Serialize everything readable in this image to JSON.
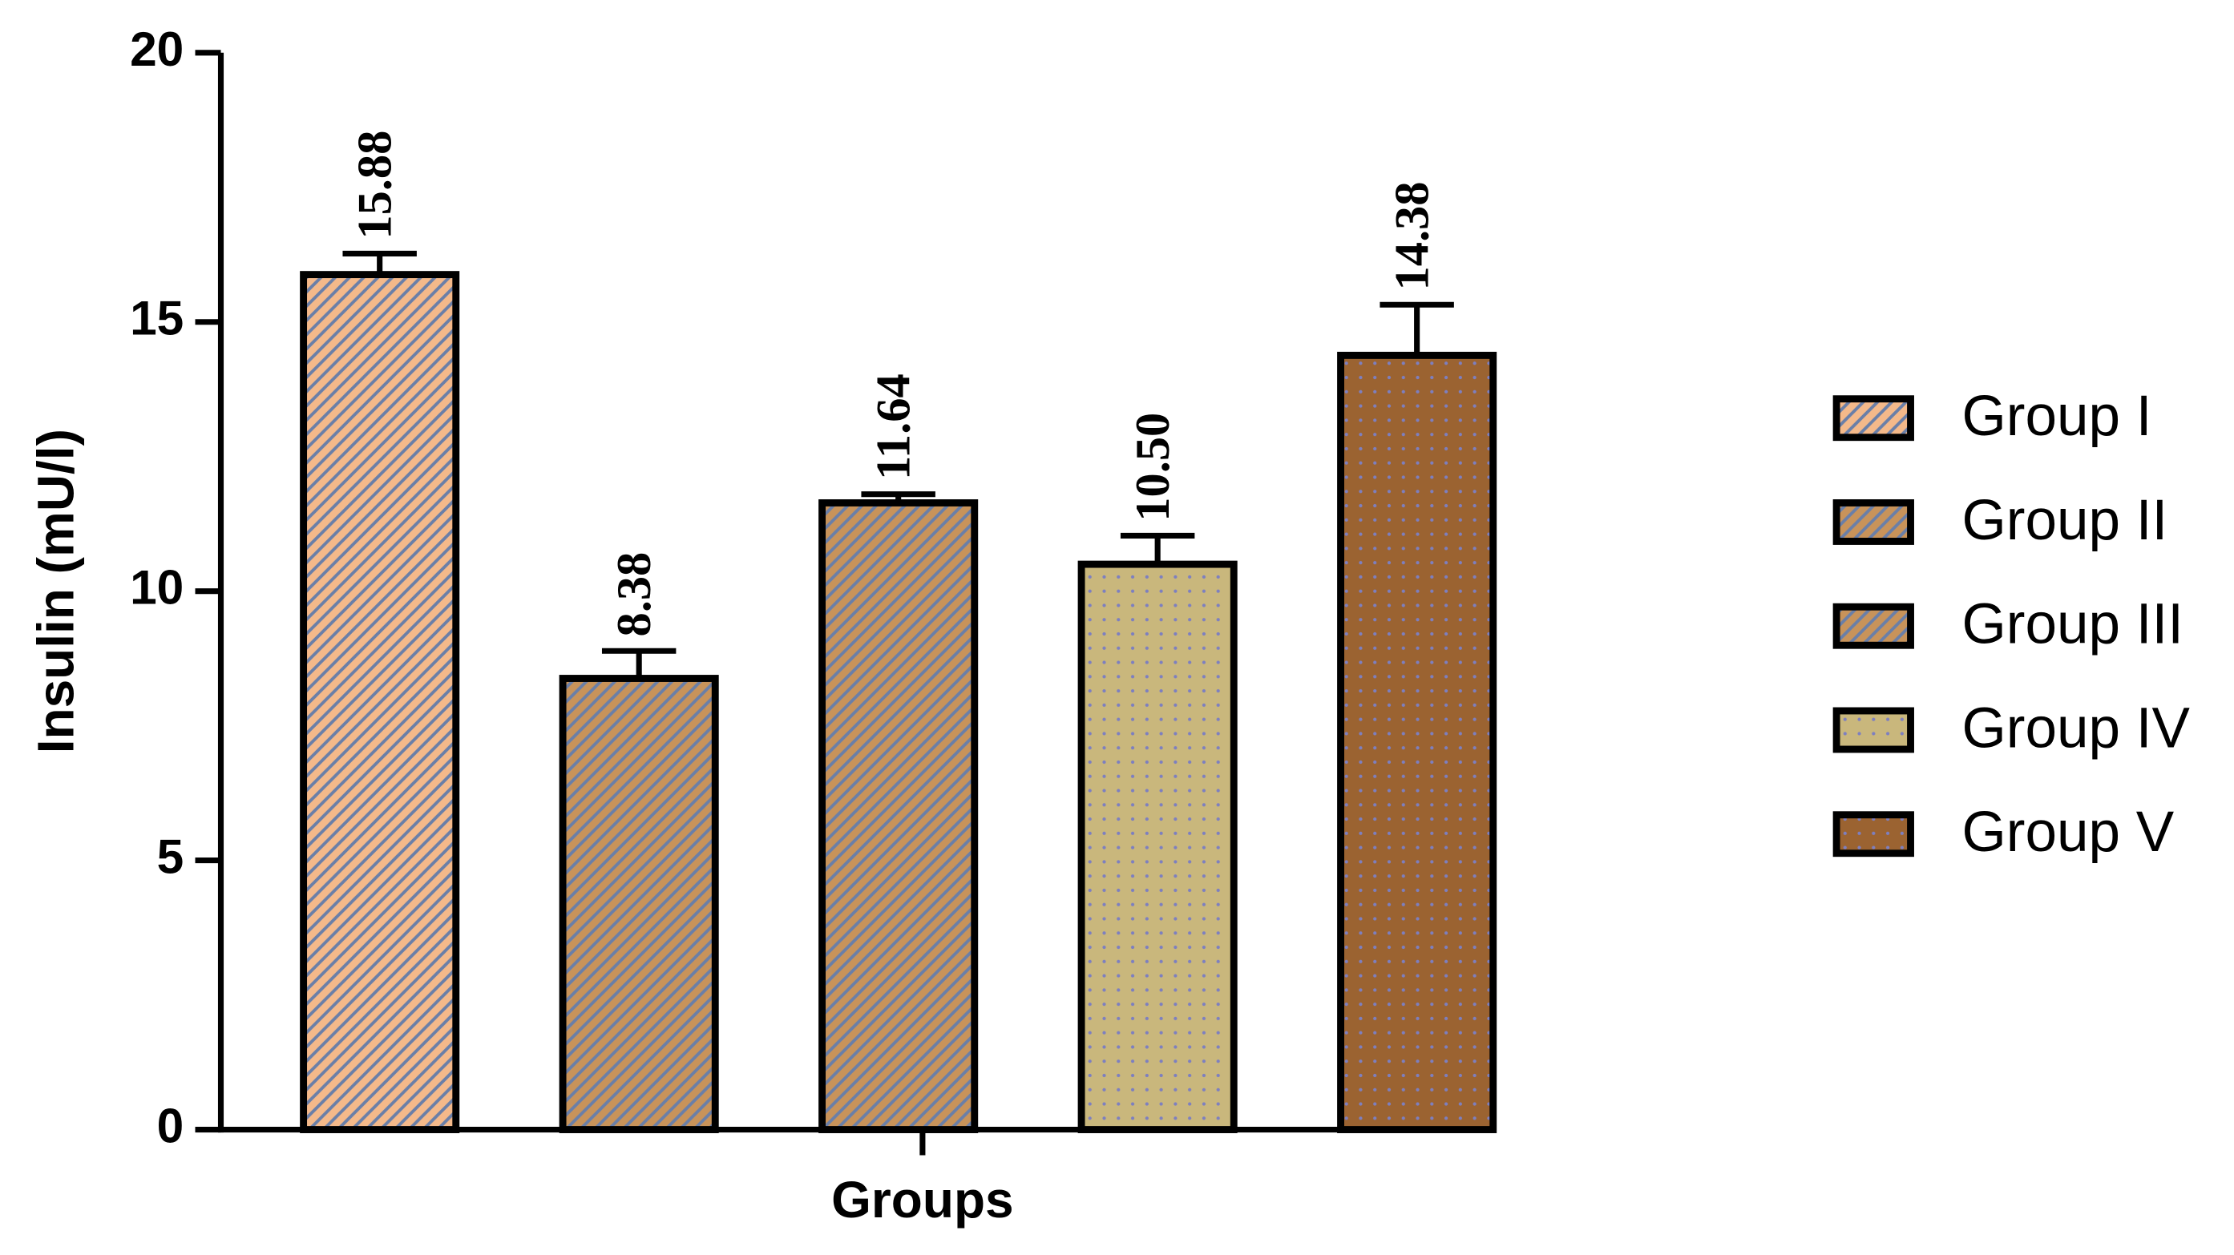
{
  "chart_data": {
    "type": "bar",
    "y_label": "Insulin (mU/l)",
    "categories": [
      "Groups"
    ],
    "ylim": [
      0,
      20
    ],
    "yticks": [
      0,
      5,
      10,
      15,
      20
    ],
    "series": [
      {
        "name": "Group I",
        "color": "#f4b98a",
        "pattern": "stripes",
        "values": [
          15.88
        ],
        "errors": [
          0.39
        ],
        "value_labels": [
          "15.88"
        ]
      },
      {
        "name": "Group II",
        "color": "#c8935a",
        "pattern": "stripes",
        "values": [
          8.38
        ],
        "errors": [
          0.51
        ],
        "value_labels": [
          "8.38"
        ]
      },
      {
        "name": "Group III",
        "color": "#c8935a",
        "pattern": "stripes",
        "values": [
          11.64
        ],
        "errors": [
          0.16
        ],
        "value_labels": [
          "11.64"
        ]
      },
      {
        "name": "Group IV",
        "color": "#c9b77c",
        "pattern": "dots",
        "values": [
          10.5
        ],
        "errors": [
          0.53
        ],
        "value_labels": [
          "10.50"
        ]
      },
      {
        "name": "Group V",
        "color": "#9b6331",
        "pattern": "dots",
        "values": [
          14.38
        ],
        "errors": [
          0.94
        ],
        "value_labels": [
          "14.38"
        ]
      }
    ],
    "legend": "right"
  }
}
